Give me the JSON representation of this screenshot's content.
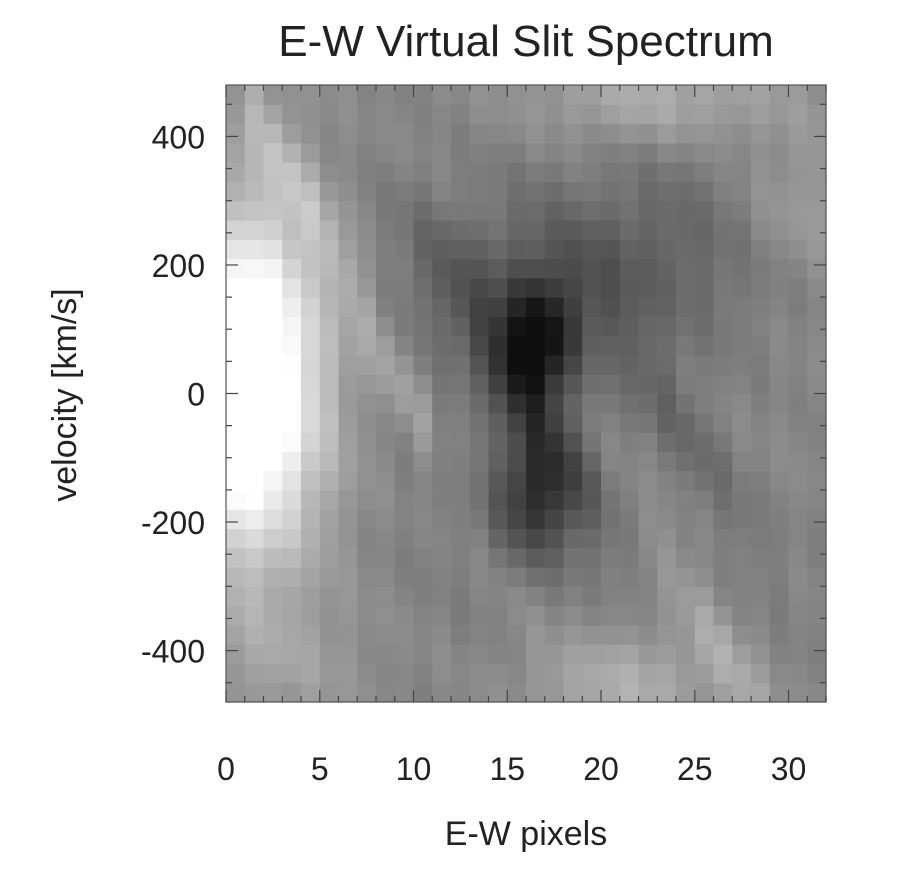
{
  "chart_data": {
    "type": "heatmap",
    "title": "E-W Virtual Slit Spectrum",
    "xlabel": "E-W pixels",
    "ylabel": "velocity [km/s]",
    "xlim": [
      0,
      32
    ],
    "ylim": [
      -480,
      480
    ],
    "x_ticks": [
      0,
      5,
      10,
      15,
      20,
      25,
      30
    ],
    "x_tick_labels": [
      "0",
      "5",
      "10",
      "15",
      "20",
      "25",
      "30"
    ],
    "y_ticks": [
      400,
      200,
      0,
      -200,
      -400
    ],
    "y_tick_labels": [
      "400",
      "200",
      "0",
      "-200",
      "-400"
    ],
    "colormap": "grayscale (dark = low, white = high)",
    "grid": false,
    "legend": "none",
    "x_pixel_centers": "0.5 to 31.5 (32 columns)",
    "velocity_bin_km_s": 30,
    "features": [
      {
        "name": "bright emission",
        "x_range": [
          0,
          6
        ],
        "velocity_range": [
          -250,
          250
        ],
        "intensity": "max"
      },
      {
        "name": "dark absorption",
        "x_center": 16.5,
        "velocity_center": 70,
        "intensity": "min"
      },
      {
        "name": "dark absorption",
        "x_center": 16.5,
        "velocity_center": -160,
        "intensity": "low"
      }
    ]
  }
}
